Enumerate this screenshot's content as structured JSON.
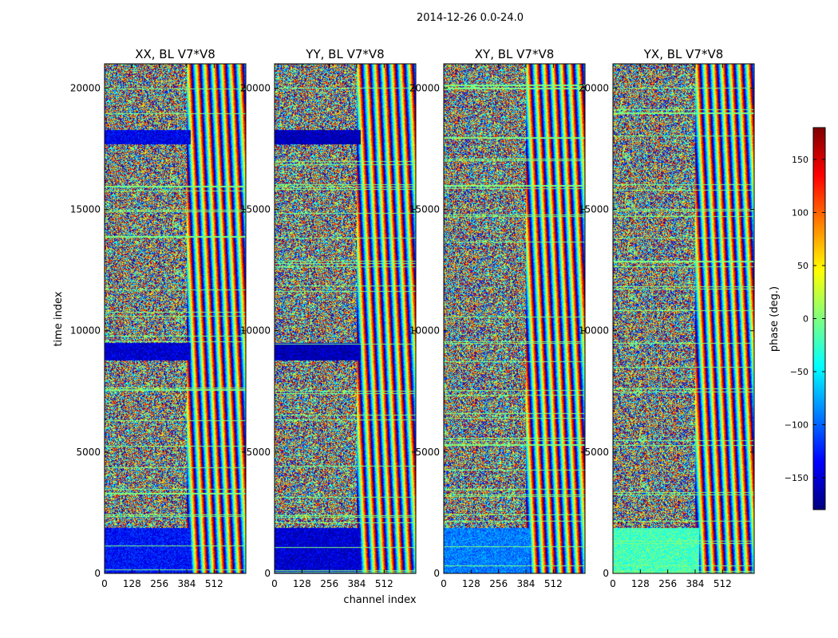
{
  "figure": {
    "suptitle": "2014-12-26 0.0-24.0",
    "xlabel": "channel index",
    "ylabel": "time index"
  },
  "colors": {
    "colormap": "jet",
    "colormap_stops": [
      "#00007f",
      "#0000ff",
      "#007fff",
      "#00ffff",
      "#7fff7f",
      "#ffff00",
      "#ff7f00",
      "#ff0000",
      "#7f0000"
    ],
    "frame": "#000000",
    "background": "#ffffff"
  },
  "chart_data": [
    {
      "type": "heatmap",
      "title": "XX, BL V7*V8",
      "xlim": [
        0,
        660
      ],
      "ylim": [
        0,
        21000
      ],
      "xticks": [
        0,
        128,
        256,
        384,
        512
      ],
      "yticks": [
        0,
        5000,
        10000,
        15000,
        20000
      ],
      "value_range": [
        -180,
        180
      ],
      "notable_bands": [
        {
          "y": [
            0,
            1900
          ],
          "x": [
            0,
            400
          ],
          "typical_phase": -130
        },
        {
          "y": [
            8800,
            9500
          ],
          "x": [
            0,
            400
          ],
          "typical_phase": -150
        },
        {
          "y": [
            17700,
            18300
          ],
          "x": [
            0,
            400
          ],
          "typical_phase": -140
        }
      ]
    },
    {
      "type": "heatmap",
      "title": "YY, BL V7*V8",
      "xlim": [
        0,
        660
      ],
      "ylim": [
        0,
        21000
      ],
      "xticks": [
        0,
        128,
        256,
        384,
        512
      ],
      "yticks": [
        0,
        5000,
        10000,
        15000,
        20000
      ],
      "value_range": [
        -180,
        180
      ],
      "notable_bands": [
        {
          "y": [
            0,
            1900
          ],
          "x": [
            0,
            400
          ],
          "typical_phase": -150
        },
        {
          "y": [
            8800,
            9500
          ],
          "x": [
            0,
            400
          ],
          "typical_phase": -160
        },
        {
          "y": [
            17700,
            18300
          ],
          "x": [
            0,
            400
          ],
          "typical_phase": -160
        }
      ]
    },
    {
      "type": "heatmap",
      "title": "XY, BL V7*V8",
      "xlim": [
        0,
        660
      ],
      "ylim": [
        0,
        21000
      ],
      "xticks": [
        0,
        128,
        256,
        384,
        512
      ],
      "yticks": [
        0,
        5000,
        10000,
        15000,
        20000
      ],
      "value_range": [
        -180,
        180
      ],
      "notable_bands": [
        {
          "y": [
            0,
            1900
          ],
          "x": [
            0,
            400
          ],
          "typical_phase": -90
        }
      ]
    },
    {
      "type": "heatmap",
      "title": "YX, BL V7*V8",
      "xlim": [
        0,
        660
      ],
      "ylim": [
        0,
        21000
      ],
      "xticks": [
        0,
        128,
        256,
        384,
        512
      ],
      "yticks": [
        0,
        5000,
        10000,
        15000,
        20000
      ],
      "value_range": [
        -180,
        180
      ],
      "notable_bands": [
        {
          "y": [
            0,
            1900
          ],
          "x": [
            0,
            400
          ],
          "typical_phase": -20
        }
      ]
    }
  ],
  "colorbar": {
    "label": "phase (deg.)",
    "range": [
      -180,
      180
    ],
    "ticks": [
      -150,
      -100,
      -50,
      0,
      50,
      100,
      150
    ],
    "tick_labels": [
      "−150",
      "−100",
      "−50",
      "0",
      "50",
      "100",
      "150"
    ]
  }
}
